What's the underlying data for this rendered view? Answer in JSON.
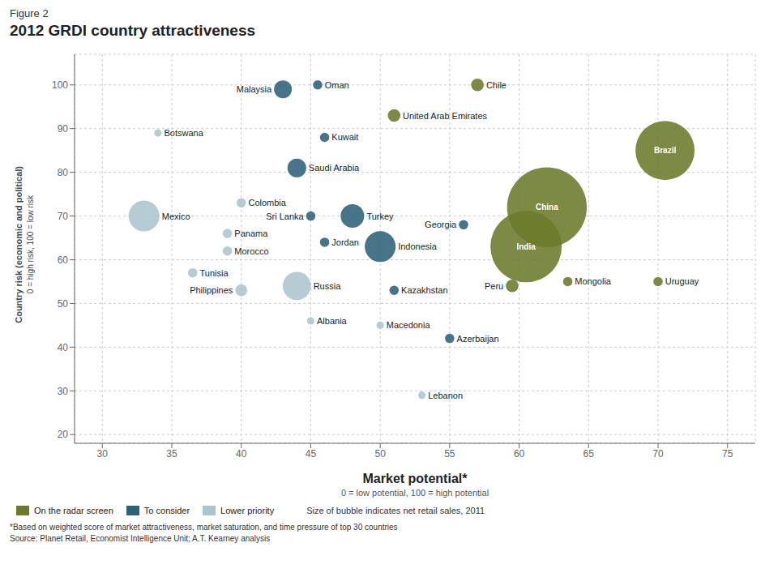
{
  "chart_data": {
    "type": "scatter",
    "subtitle": "Figure 2",
    "title": "2012 GRDI country attractiveness",
    "x_label": "Market potential*",
    "x_label_sub": "0 = low potential, 100 = high potential",
    "y_label": "Country risk (economic and political)",
    "y_label_sub": "0 = high risk, 100 = low risk",
    "xlim": [
      28,
      77
    ],
    "ylim": [
      18,
      107
    ],
    "xticks": [
      30,
      35,
      40,
      45,
      50,
      55,
      60,
      65,
      70,
      75
    ],
    "yticks": [
      20,
      30,
      40,
      50,
      60,
      70,
      80,
      90,
      100
    ],
    "grid": true,
    "legend": "bottom",
    "size_note": "Size of bubble indicates net retail sales, 2011",
    "footnotes": [
      "*Based on weighted score of market attractiveness, market saturation, and time pressure of top 30 countries",
      "Source: Planet Retail, Economist Intelligence Unit; A.T. Kearney analysis"
    ],
    "series": [
      {
        "name": "On the radar screen",
        "color": "#6b7a2a",
        "labels": [
          "Brazil",
          "China",
          "India",
          "Chile",
          "United Arab Emirates",
          "Peru",
          "Mongolia",
          "Uruguay"
        ],
        "x": [
          70.5,
          62,
          60.5,
          57,
          51,
          59.5,
          63.5,
          70
        ],
        "y": [
          85,
          72,
          63,
          100,
          93,
          54,
          55,
          55
        ],
        "size": [
          2200,
          4000,
          3200,
          100,
          100,
          100,
          55,
          55
        ]
      },
      {
        "name": "To consider",
        "color": "#2d6178",
        "labels": [
          "Turkey",
          "Indonesia",
          "Saudi Arabia",
          "Malaysia",
          "Kuwait",
          "Sri Lanka",
          "Jordan",
          "Georgia",
          "Kazakhstan",
          "Azerbaijan",
          "Oman"
        ],
        "x": [
          48,
          50,
          44,
          43,
          46,
          45,
          46,
          56,
          51,
          55,
          45.5
        ],
        "y": [
          70,
          63,
          81,
          99,
          88,
          70,
          64,
          68,
          53,
          42,
          100
        ],
        "size": [
          350,
          600,
          220,
          200,
          55,
          55,
          55,
          55,
          55,
          55,
          55
        ]
      },
      {
        "name": "Lower priority",
        "color": "#aac5cc",
        "labels": [
          "Russia",
          "Mexico",
          "Colombia",
          "Philippines",
          "Tunisia",
          "Panama",
          "Morocco",
          "Botswana",
          "Albania",
          "Macedonia",
          "Lebanon"
        ],
        "x": [
          44,
          33,
          40,
          40,
          36.5,
          39,
          39,
          34,
          45,
          50,
          53
        ],
        "y": [
          54,
          70,
          73,
          53,
          57,
          66,
          62,
          89,
          46,
          45,
          29
        ],
        "size": [
          500,
          600,
          55,
          90,
          55,
          55,
          55,
          35,
          35,
          35,
          35
        ]
      }
    ]
  }
}
